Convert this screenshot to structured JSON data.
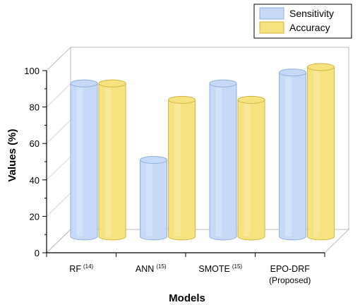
{
  "chart_data": {
    "type": "bar",
    "style": "3d-cylinder",
    "categories": [
      {
        "label": "RF",
        "sup": "(14)",
        "line2": ""
      },
      {
        "label": "ANN",
        "sup": "(15)",
        "line2": ""
      },
      {
        "label": "SMOTE",
        "sup": "(15)",
        "line2": ""
      },
      {
        "label": "EPO-DRF",
        "sup": "",
        "line2": "(Proposed)"
      }
    ],
    "series": [
      {
        "name": "Sensitivity",
        "values": [
          84,
          42,
          84,
          90
        ],
        "color": "#c6daf8",
        "stroke": "#8fb0de"
      },
      {
        "name": "Accuracy",
        "values": [
          84,
          75,
          75,
          93
        ],
        "color": "#f6e27e",
        "stroke": "#d1b53e"
      }
    ],
    "title": "",
    "xlabel": "Models",
    "ylabel": "Values (%)",
    "ylim": [
      0,
      100
    ],
    "yticks": [
      0,
      20,
      40,
      60,
      80,
      100
    ],
    "grid": true,
    "legend_position": "top-right"
  }
}
